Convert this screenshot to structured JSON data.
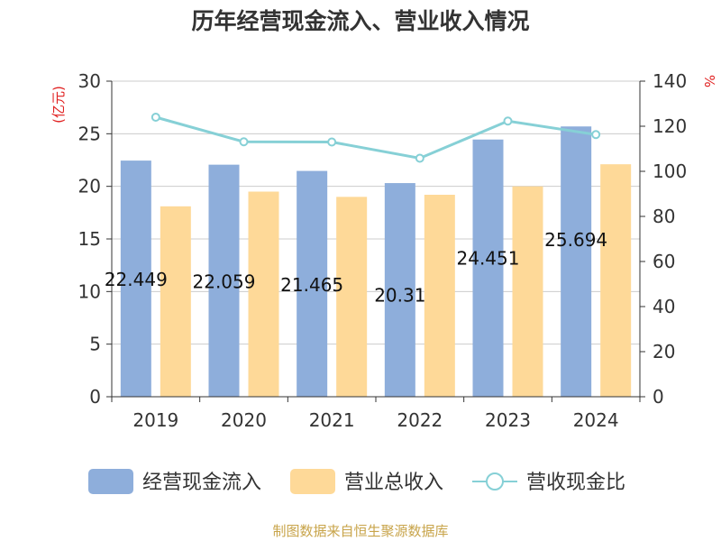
{
  "chart_data": {
    "type": "bar",
    "title": "历年经营现金流入、营业收入情况",
    "categories": [
      "2019",
      "2020",
      "2021",
      "2022",
      "2023",
      "2024"
    ],
    "y_left": {
      "unit_label": "(亿元)",
      "ylim": [
        0,
        30
      ],
      "ticks": [
        0,
        5,
        10,
        15,
        20,
        25,
        30
      ]
    },
    "y_right": {
      "unit_label": "%",
      "ylim": [
        0,
        140
      ],
      "ticks": [
        0,
        20,
        40,
        60,
        80,
        100,
        120,
        140
      ]
    },
    "series": [
      {
        "name": "经营现金流入",
        "kind": "bar",
        "axis": "left",
        "color": "#8eaedb",
        "values": [
          22.449,
          22.059,
          21.465,
          20.31,
          24.451,
          25.694
        ],
        "labels": [
          "22.449",
          "22.059",
          "21.465",
          "20.31",
          "24.451",
          "25.694"
        ]
      },
      {
        "name": "营业总收入",
        "kind": "bar",
        "axis": "left",
        "color": "#fed998",
        "values": [
          18.1,
          19.5,
          19.0,
          19.2,
          20.0,
          22.1
        ]
      },
      {
        "name": "营收现金比",
        "kind": "line",
        "axis": "right",
        "color": "#86d0d6",
        "values": [
          124.0,
          113.1,
          113.0,
          105.8,
          122.3,
          116.3
        ]
      }
    ],
    "grid": true,
    "legend_position": "bottom"
  },
  "source_text": "制图数据来自恒生聚源数据库"
}
